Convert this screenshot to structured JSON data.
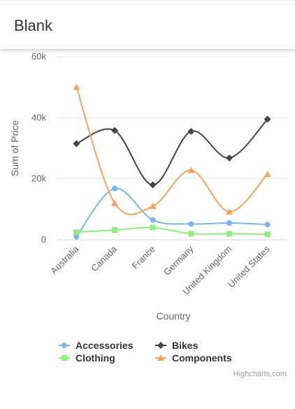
{
  "header": {
    "title": "Blank"
  },
  "credits": "Highcharts.com",
  "chart_data": {
    "type": "line",
    "xlabel": "Country",
    "ylabel": "Sum of Price",
    "ylim": [
      0,
      60000
    ],
    "yticks": [
      0,
      20000,
      40000,
      60000
    ],
    "ytick_labels": [
      "0",
      "20k",
      "40k",
      "60k"
    ],
    "categories": [
      "Australia",
      "Canada",
      "France",
      "Germany",
      "United Kingdom",
      "United States"
    ],
    "grid": true,
    "legend_position": "bottom",
    "series": [
      {
        "name": "Accessories",
        "color": "#7cb5ec",
        "marker": "circle",
        "values": [
          1000,
          16800,
          6500,
          5200,
          5500,
          5000
        ]
      },
      {
        "name": "Bikes",
        "color": "#434348",
        "marker": "diamond",
        "values": [
          31500,
          35800,
          18000,
          35500,
          26800,
          39500
        ]
      },
      {
        "name": "Clothing",
        "color": "#90ed7d",
        "marker": "square",
        "values": [
          2500,
          3200,
          4000,
          2000,
          2000,
          1800
        ]
      },
      {
        "name": "Components",
        "color": "#f7a35c",
        "marker": "triangle",
        "values": [
          50000,
          12000,
          11000,
          22800,
          9200,
          21500
        ]
      }
    ]
  }
}
